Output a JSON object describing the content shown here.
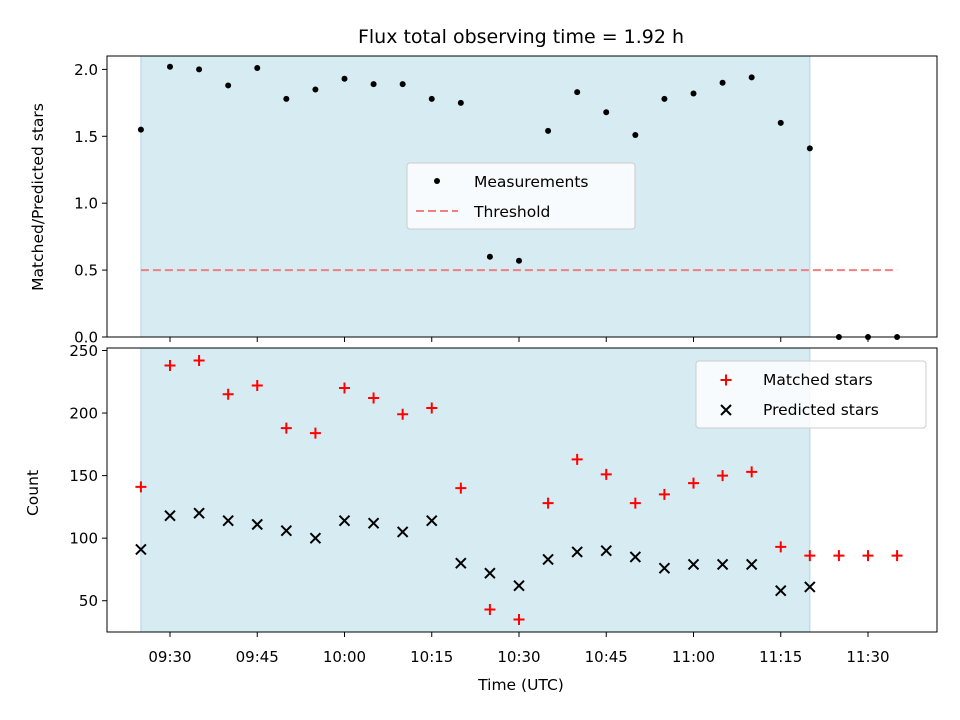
{
  "chart_data": [
    {
      "type": "scatter",
      "title": "Flux total observing time = 1.92 h",
      "ylabel": "Matched/Predicted stars",
      "ylim": [
        0,
        2.1
      ],
      "yticks": [
        "0.0",
        "0.5",
        "1.0",
        "1.5",
        "2.0"
      ],
      "shaded_span": [
        "09:25",
        "11:20"
      ],
      "shaded_color": "#add8e6",
      "legend_position": "center",
      "series": [
        {
          "name": "Measurements",
          "marker": "dot",
          "color": "#000000",
          "x": [
            "09:25",
            "09:30",
            "09:35",
            "09:40",
            "09:45",
            "09:50",
            "09:55",
            "10:00",
            "10:05",
            "10:10",
            "10:15",
            "10:20",
            "10:25",
            "10:30",
            "10:35",
            "10:40",
            "10:45",
            "10:50",
            "10:55",
            "11:00",
            "11:05",
            "11:10",
            "11:15",
            "11:20",
            "11:25",
            "11:30",
            "11:35"
          ],
          "y": [
            1.55,
            2.02,
            2.0,
            1.88,
            2.01,
            1.78,
            1.85,
            1.93,
            1.89,
            1.89,
            1.78,
            1.75,
            0.6,
            0.57,
            1.54,
            1.83,
            1.68,
            1.51,
            1.78,
            1.82,
            1.9,
            1.94,
            1.6,
            1.41,
            0.0,
            0.0,
            0.0
          ]
        },
        {
          "name": "Threshold",
          "marker": "dashed-line",
          "color": "#f08080",
          "x": [
            "09:25",
            "11:35"
          ],
          "y": [
            0.5,
            0.5
          ]
        }
      ]
    },
    {
      "type": "scatter",
      "ylabel": "Count",
      "xlabel": "Time (UTC)",
      "ylim": [
        25,
        252
      ],
      "yticks": [
        "50",
        "100",
        "150",
        "200",
        "250"
      ],
      "xticks": [
        "09:30",
        "09:45",
        "10:00",
        "10:15",
        "10:30",
        "10:45",
        "11:00",
        "11:15",
        "11:30"
      ],
      "shaded_span": [
        "09:25",
        "11:20"
      ],
      "shaded_color": "#add8e6",
      "legend_position": "upper right",
      "series": [
        {
          "name": "Matched stars",
          "marker": "plus",
          "color": "#ff0000",
          "x": [
            "09:25",
            "09:30",
            "09:35",
            "09:40",
            "09:45",
            "09:50",
            "09:55",
            "10:00",
            "10:05",
            "10:10",
            "10:15",
            "10:20",
            "10:25",
            "10:30",
            "10:35",
            "10:40",
            "10:45",
            "10:50",
            "10:55",
            "11:00",
            "11:05",
            "11:10",
            "11:15",
            "11:20",
            "11:25",
            "11:30",
            "11:35"
          ],
          "y": [
            141,
            238,
            242,
            215,
            222,
            188,
            184,
            220,
            212,
            199,
            204,
            140,
            43,
            35,
            128,
            163,
            151,
            128,
            135,
            144,
            150,
            153,
            93,
            86,
            86,
            86,
            86
          ]
        },
        {
          "name": "Predicted stars",
          "marker": "x",
          "color": "#000000",
          "x": [
            "09:25",
            "09:30",
            "09:35",
            "09:40",
            "09:45",
            "09:50",
            "09:55",
            "10:00",
            "10:05",
            "10:10",
            "10:15",
            "10:20",
            "10:25",
            "10:30",
            "10:35",
            "10:40",
            "10:45",
            "10:50",
            "10:55",
            "11:00",
            "11:05",
            "11:10",
            "11:15",
            "11:20"
          ],
          "y": [
            91,
            118,
            120,
            114,
            111,
            106,
            100,
            114,
            112,
            105,
            114,
            80,
            72,
            62,
            83,
            89,
            90,
            85,
            76,
            79,
            79,
            79,
            58,
            61
          ]
        }
      ]
    }
  ]
}
